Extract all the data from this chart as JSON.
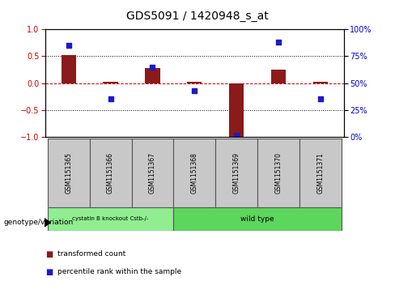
{
  "title": "GDS5091 / 1420948_s_at",
  "samples": [
    "GSM1151365",
    "GSM1151366",
    "GSM1151367",
    "GSM1151368",
    "GSM1151369",
    "GSM1151370",
    "GSM1151371"
  ],
  "transformed_count": [
    0.52,
    0.02,
    0.28,
    0.03,
    -1.0,
    0.25,
    0.02
  ],
  "percentile_rank": [
    0.85,
    0.35,
    0.65,
    0.43,
    0.01,
    0.88,
    0.35
  ],
  "bar_color": "#8B1A1A",
  "dot_color": "#1A1ACD",
  "ylim_left": [
    -1,
    1
  ],
  "ylim_right": [
    0,
    100
  ],
  "yticks_left": [
    -1,
    -0.5,
    0,
    0.5,
    1
  ],
  "yticks_right": [
    0,
    25,
    50,
    75,
    100
  ],
  "ytick_labels_right": [
    "0%",
    "25%",
    "50%",
    "75%",
    "100%"
  ],
  "hline_color": "#CC0000",
  "dotted_lines": [
    -0.5,
    0.5
  ],
  "group1_label": "cystatin B knockout Cstb-/-",
  "group2_label": "wild type",
  "group1_indices": [
    0,
    1,
    2
  ],
  "group2_indices": [
    3,
    4,
    5,
    6
  ],
  "group1_color": "#90EE90",
  "group2_color": "#5CD65C",
  "genotype_label": "genotype/variation",
  "legend_red": "transformed count",
  "legend_blue": "percentile rank within the sample",
  "bar_width": 0.35,
  "bg_color": "#C8C8C8",
  "title_fontsize": 10,
  "tick_fontsize": 7,
  "label_fontsize": 6,
  "group_fontsize": 6.5
}
